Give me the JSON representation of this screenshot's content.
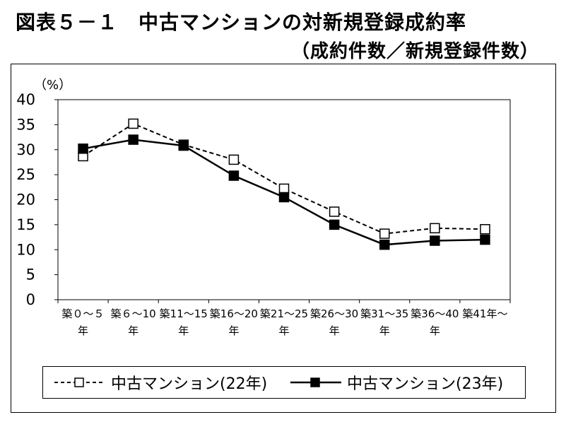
{
  "title": {
    "line1": "図表５－１　中古マンションの対新規登録成約率",
    "line2": "（成約件数／新規登録件数）"
  },
  "chart_data": {
    "type": "line",
    "y_unit": "（%）",
    "ylim": [
      0,
      40
    ],
    "yticks": [
      "0",
      "5",
      "10",
      "15",
      "20",
      "25",
      "30",
      "35",
      "40"
    ],
    "categories": [
      {
        "top": "築０～５",
        "bottom": "年"
      },
      {
        "top": "築６～10",
        "bottom": "年"
      },
      {
        "top": "築11～15",
        "bottom": "年"
      },
      {
        "top": "築16～20",
        "bottom": "年"
      },
      {
        "top": "築21～25",
        "bottom": "年"
      },
      {
        "top": "築26～30",
        "bottom": "年"
      },
      {
        "top": "築31～35",
        "bottom": "年"
      },
      {
        "top": "築36～40",
        "bottom": "年"
      },
      {
        "top": "築41年～",
        "bottom": ""
      }
    ],
    "grid": false,
    "legend_position": "bottom",
    "series": [
      {
        "name": "中古マンション(22年)",
        "style": "dashed",
        "marker": "open-square",
        "values": [
          28.7,
          35.2,
          31.0,
          28.0,
          22.2,
          17.6,
          13.2,
          14.3,
          14.1
        ]
      },
      {
        "name": "中古マンション(23年)",
        "style": "solid",
        "marker": "filled-square",
        "values": [
          30.2,
          32.0,
          30.8,
          24.8,
          20.5,
          15.0,
          11.0,
          11.8,
          12.0
        ]
      }
    ]
  },
  "colors": {
    "line": "#000000",
    "background": "#ffffff"
  }
}
